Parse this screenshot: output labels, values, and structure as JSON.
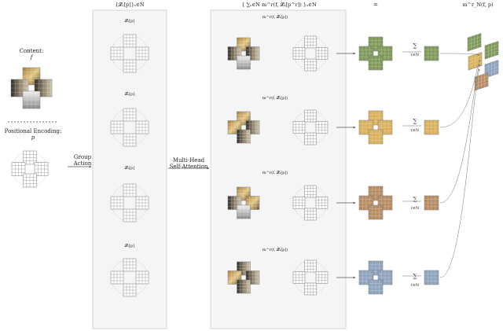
{
  "labels": {
    "content": "Content:",
    "content_sym": "f",
    "positional": "Positional Encoding:",
    "positional_sym": "p",
    "group_action": "Group",
    "group_action2": "Action",
    "mha": "Multi-Head",
    "mha2": "Self-Attention",
    "set_top": "{𝓛ₛ[p]}ₛ∈N",
    "set_mid": "{ ∑ₛ∈N m^r(f, 𝓛ₛ[p^r]) }ₛ∈N",
    "equals": "=",
    "out_top": "m^r_N(f, p)",
    "ell1": "𝓛ₛ[p]",
    "ell2": "𝓛ₛ[p]",
    "ell3": "𝓛ₛ[p]",
    "ell4": "𝓛ₛ[p]",
    "m1": "m^r(f, 𝓛ₛ[p])",
    "m2": "m^r(f, 𝓛ₛ[p])",
    "m3": "m^r(f, 𝓛ₛ[p])",
    "m4": "m^r(f, 𝓛ₛ[p])",
    "sum": "∑",
    "sum_sub": "ℓ∈N"
  },
  "colors": {
    "panel_bg": "#f3f5f7",
    "panel_border": "#c7ccd2",
    "grid_line": "#7d7d7d",
    "arrow": "#555555",
    "green": "#7f9a5a",
    "yellow": "#d9b25e",
    "brown": "#b88d64",
    "blue": "#8fa4bd",
    "dark": "#3b3a35",
    "light": "#d8d3c4"
  }
}
